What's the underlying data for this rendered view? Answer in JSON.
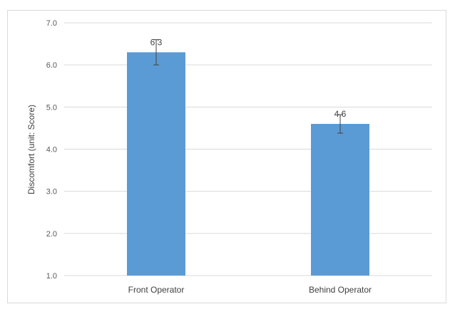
{
  "chart_data": {
    "type": "bar",
    "categories": [
      "Front Operator",
      "Behind Operator"
    ],
    "values": [
      6.3,
      4.6
    ],
    "error": [
      0.3,
      0.22
    ],
    "data_labels": [
      "6.3",
      "4.6"
    ],
    "ylabel": "Discomfort (unit: Score)",
    "xlabel": "",
    "ylim": [
      1.0,
      7.0
    ],
    "yticks": [
      "1.0",
      "2.0",
      "3.0",
      "4.0",
      "5.0",
      "6.0",
      "7.0"
    ],
    "grid": true,
    "legend": "none",
    "bar_color": "#5b9bd5",
    "grid_color": "#d9d9d9"
  }
}
